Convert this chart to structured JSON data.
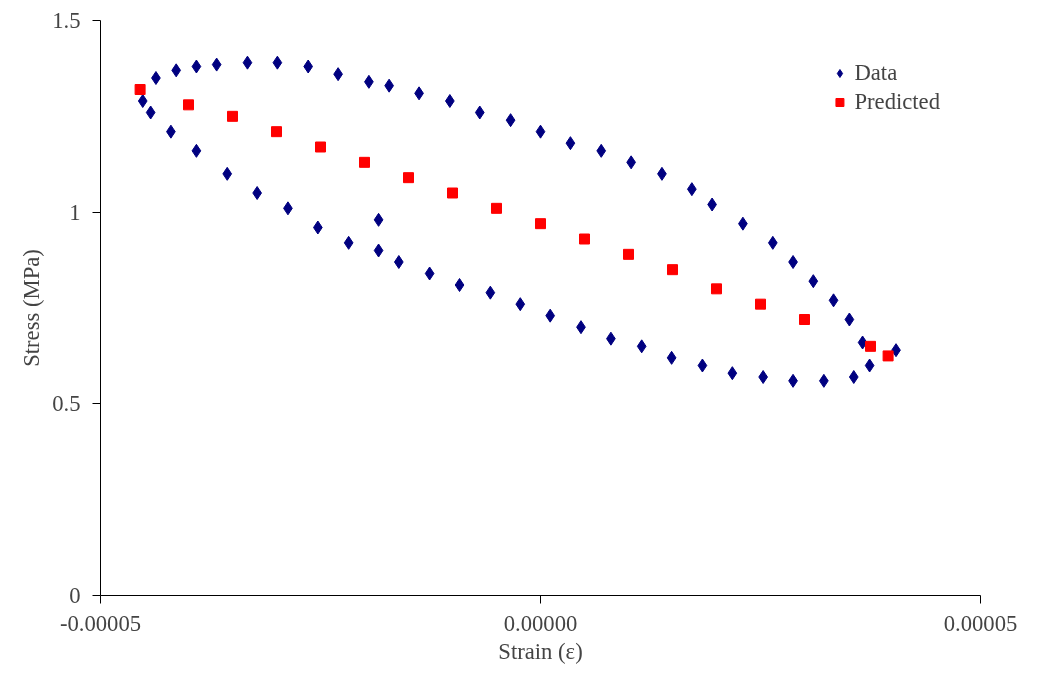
{
  "chart_data": {
    "type": "scatter",
    "xlabel": "Strain (ε)",
    "ylabel": "Stress (MPa)",
    "xlim": [
      -5e-05,
      5e-05
    ],
    "ylim": [
      0,
      1.5
    ],
    "xticks": [
      {
        "value": -5e-05,
        "label": "-0.00005"
      },
      {
        "value": 0,
        "label": "0.00000"
      },
      {
        "value": 5e-05,
        "label": "0.00005"
      }
    ],
    "yticks": [
      0,
      0.5,
      1,
      1.5
    ],
    "grid": false,
    "legend": "top right",
    "series": [
      {
        "name": "Data",
        "color": "#000080",
        "marker": "diamond",
        "x": [
          -4.52e-05,
          -4.37e-05,
          -4.14e-05,
          -3.91e-05,
          -3.68e-05,
          -3.33e-05,
          -2.99e-05,
          -2.64e-05,
          -2.3e-05,
          -1.95e-05,
          -1.72e-05,
          -1.38e-05,
          -1.03e-05,
          -6.9e-06,
          -3.4e-06,
          0,
          3.4e-06,
          6.9e-06,
          1.03e-05,
          1.38e-05,
          1.72e-05,
          1.95e-05,
          2.3e-05,
          2.64e-05,
          2.87e-05,
          3.1e-05,
          3.33e-05,
          3.51e-05,
          3.66e-05,
          3.74e-05,
          4.04e-05,
          3.56e-05,
          3.22e-05,
          2.87e-05,
          2.53e-05,
          2.18e-05,
          1.84e-05,
          1.49e-05,
          1.15e-05,
          8e-06,
          4.6e-06,
          1.1e-06,
          -2.3e-06,
          -5.7e-06,
          -9.2e-06,
          -1.26e-05,
          -1.61e-05,
          -1.84e-05,
          -1.84e-05,
          -2.18e-05,
          -2.53e-05,
          -2.87e-05,
          -3.22e-05,
          -3.56e-05,
          -3.91e-05,
          -4.2e-05,
          -4.43e-05
        ],
        "values": [
          1.29,
          1.35,
          1.37,
          1.38,
          1.385,
          1.39,
          1.39,
          1.38,
          1.36,
          1.34,
          1.33,
          1.31,
          1.29,
          1.26,
          1.24,
          1.21,
          1.18,
          1.16,
          1.13,
          1.1,
          1.06,
          1.02,
          0.97,
          0.92,
          0.87,
          0.82,
          0.77,
          0.72,
          0.66,
          0.6,
          0.64,
          0.57,
          0.56,
          0.56,
          0.57,
          0.58,
          0.6,
          0.62,
          0.65,
          0.67,
          0.7,
          0.73,
          0.76,
          0.79,
          0.81,
          0.84,
          0.87,
          0.9,
          0.98,
          0.92,
          0.96,
          1.01,
          1.05,
          1.1,
          1.16,
          1.21,
          1.26
        ]
      },
      {
        "name": "Predicted",
        "color": "#ff0000",
        "marker": "square",
        "x": [
          -4.55e-05,
          -4e-05,
          -3.5e-05,
          -3e-05,
          -2.5e-05,
          -2e-05,
          -1.5e-05,
          -1e-05,
          -5e-06,
          0,
          5e-06,
          1e-05,
          1.5e-05,
          2e-05,
          2.5e-05,
          3e-05,
          3.75e-05,
          3.95e-05
        ],
        "values": [
          1.32,
          1.28,
          1.25,
          1.21,
          1.17,
          1.13,
          1.09,
          1.05,
          1.01,
          0.97,
          0.93,
          0.89,
          0.85,
          0.8,
          0.76,
          0.72,
          0.65,
          0.625
        ]
      }
    ]
  }
}
